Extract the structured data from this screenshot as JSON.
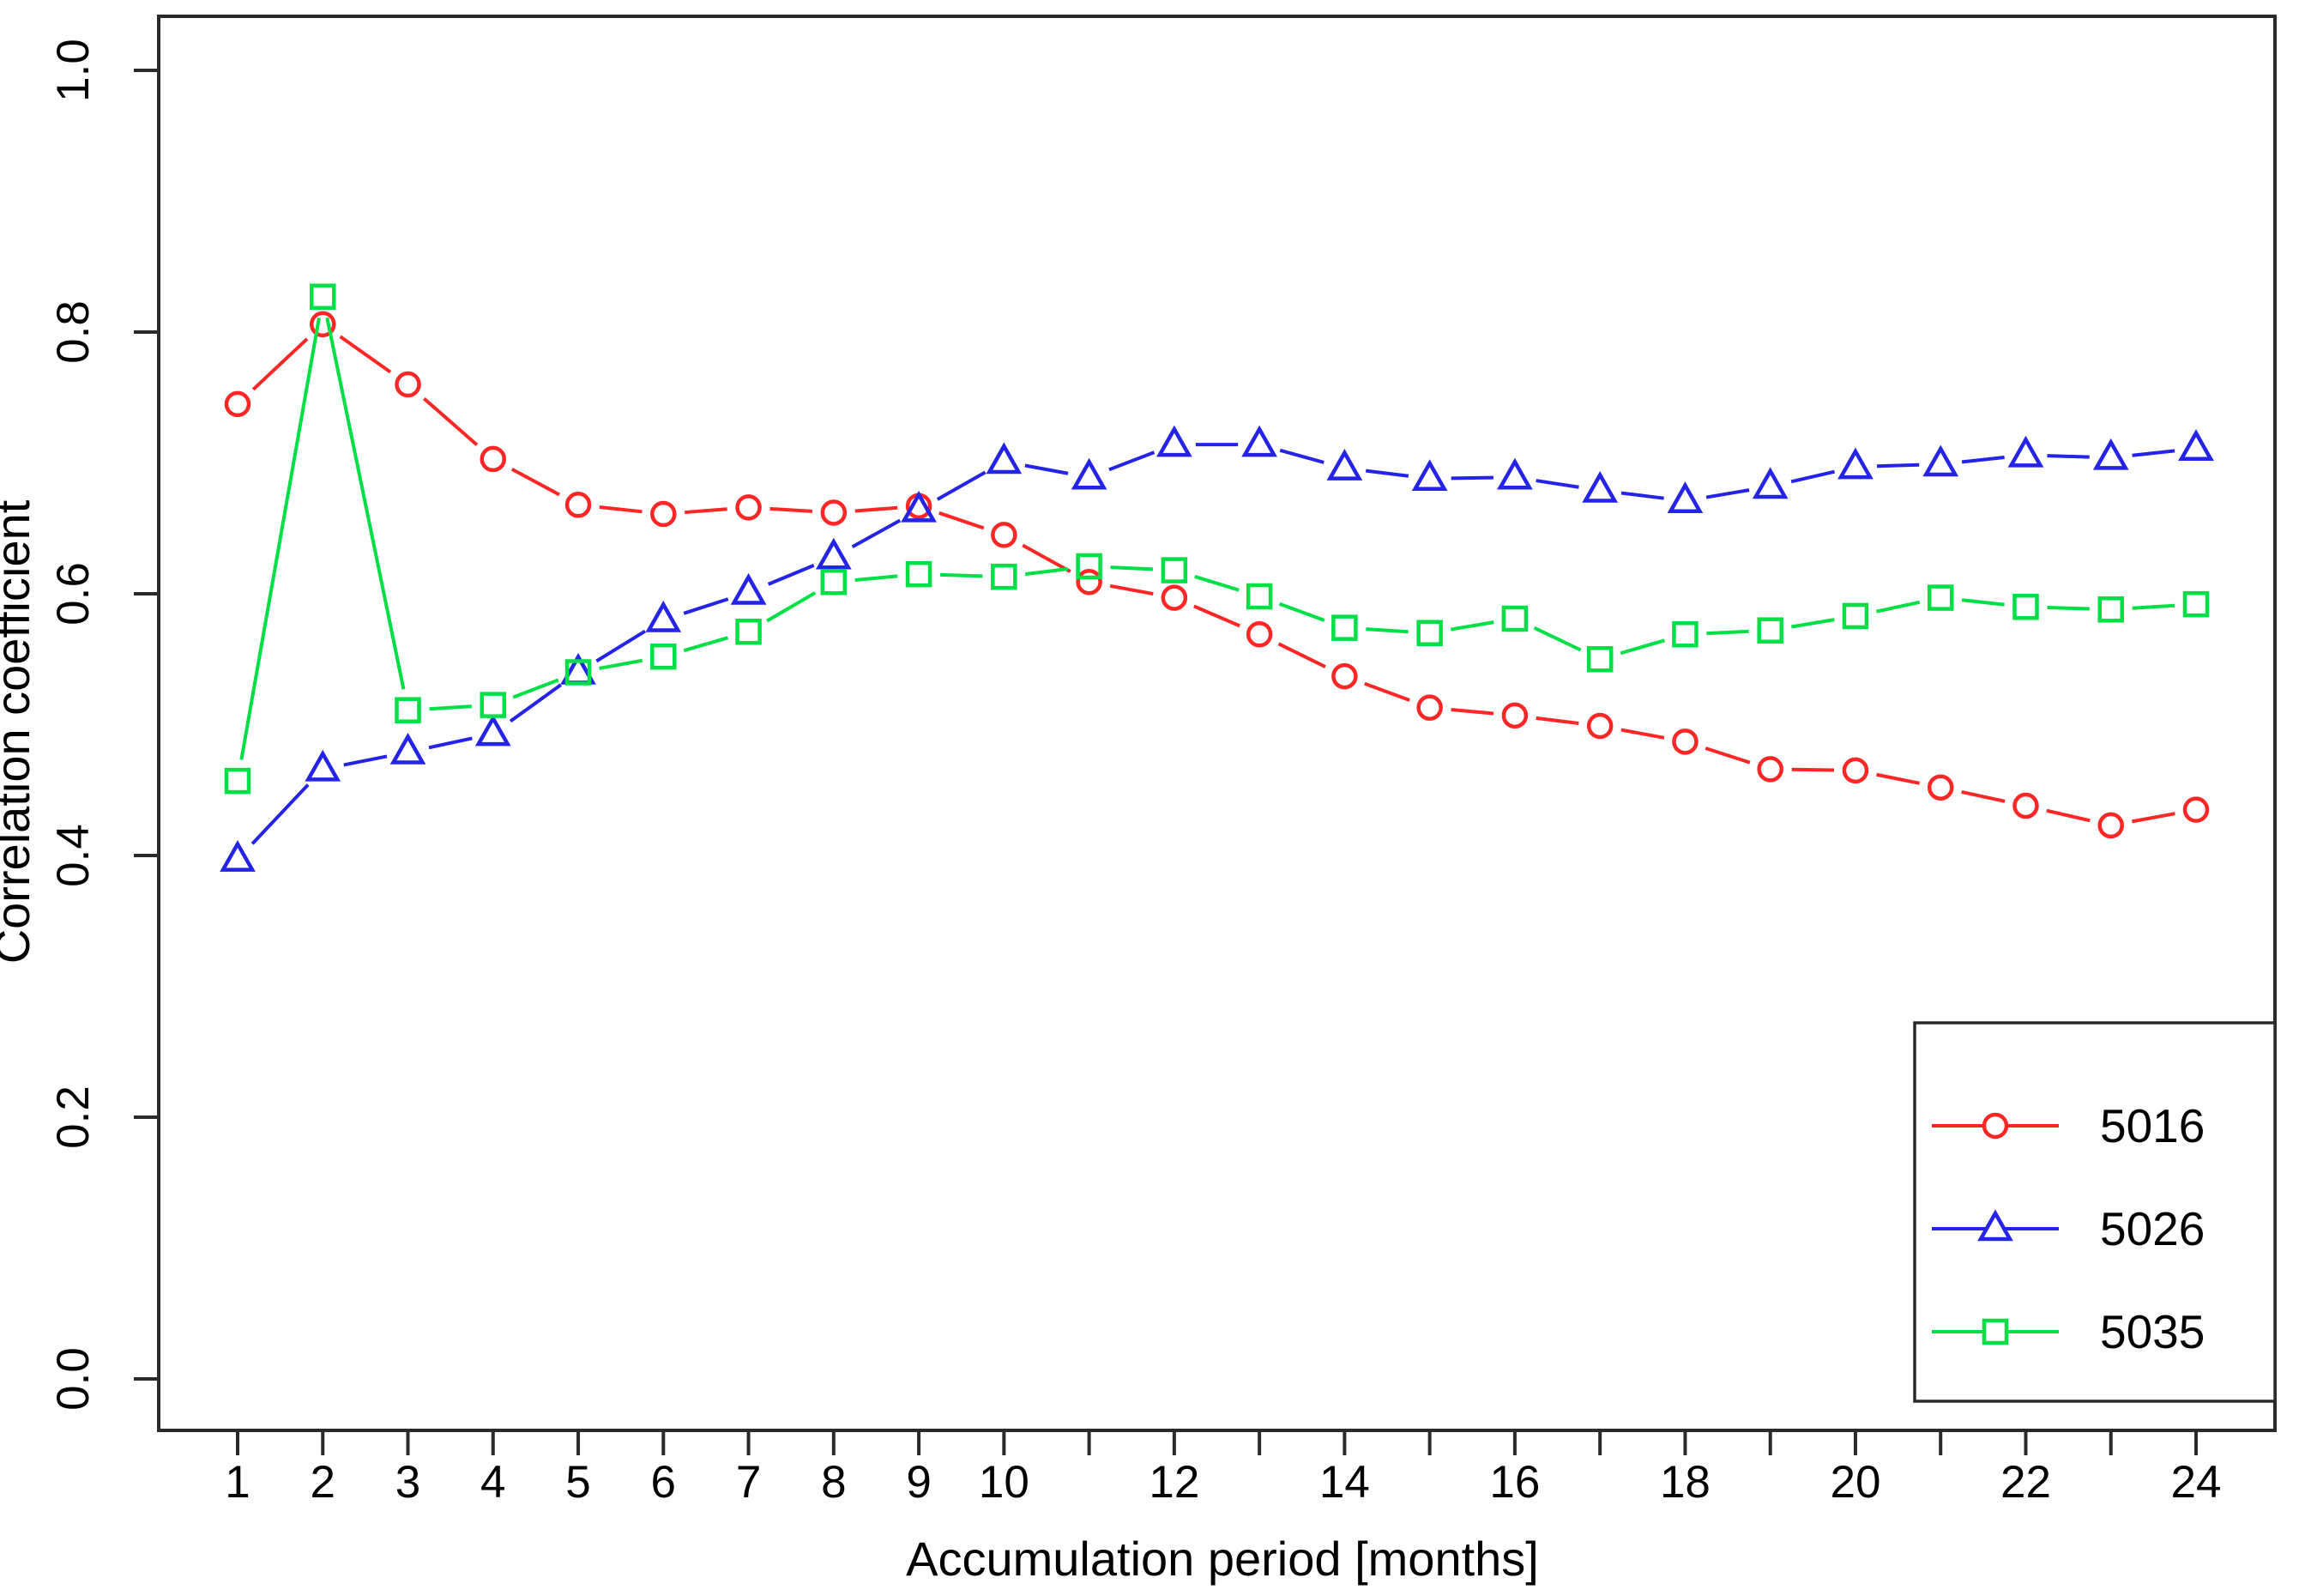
{
  "page": {
    "background": "#ffffff"
  },
  "colors": {
    "frame": "#2a2a2a",
    "text": "#000000",
    "series_red": "#ff2626",
    "series_blue": "#2424e8",
    "series_green": "#00e046"
  },
  "axes": {
    "x": {
      "label": "Accumulation period [months]",
      "tick_positions": [
        1,
        2,
        3,
        4,
        5,
        6,
        7,
        8,
        9,
        10,
        11,
        12,
        13,
        14,
        15,
        16,
        17,
        18,
        19,
        20,
        21,
        22,
        23,
        24
      ],
      "labeled_ticks": [
        1,
        2,
        3,
        4,
        5,
        6,
        7,
        8,
        9,
        10,
        12,
        14,
        16,
        18,
        20,
        22,
        24
      ]
    },
    "y": {
      "label": "Correlation coefficient",
      "tick_values": [
        0.0,
        0.2,
        0.4,
        0.6,
        0.8,
        1.0
      ],
      "tick_labels": [
        "0.0",
        "0.2",
        "0.4",
        "0.6",
        "0.8",
        "1.0"
      ]
    }
  },
  "legend": {
    "position": "bottom-right",
    "labels": [
      "5016",
      "5026",
      "5035"
    ]
  },
  "chart_data": {
    "type": "line",
    "title": "",
    "xlabel": "Accumulation period [months]",
    "ylabel": "Correlation coefficient",
    "xlim": [
      1,
      24
    ],
    "ylim": [
      0.0,
      1.0
    ],
    "grid": false,
    "legend_position": "bottom-right",
    "x": [
      1,
      2,
      3,
      4,
      5,
      6,
      7,
      8,
      9,
      10,
      11,
      12,
      13,
      14,
      15,
      16,
      17,
      18,
      19,
      20,
      21,
      22,
      23,
      24
    ],
    "series": [
      {
        "name": "5016",
        "color": "#ff2626",
        "marker": "circle",
        "values": [
          0.745,
          0.806,
          0.76,
          0.703,
          0.668,
          0.661,
          0.666,
          0.662,
          0.667,
          0.645,
          0.609,
          0.597,
          0.569,
          0.537,
          0.513,
          0.507,
          0.499,
          0.487,
          0.466,
          0.465,
          0.452,
          0.438,
          0.423,
          0.435
        ]
      },
      {
        "name": "5026",
        "color": "#2424e8",
        "marker": "triangle",
        "values": [
          0.397,
          0.466,
          0.479,
          0.493,
          0.54,
          0.58,
          0.601,
          0.628,
          0.664,
          0.701,
          0.689,
          0.714,
          0.714,
          0.696,
          0.688,
          0.689,
          0.679,
          0.671,
          0.682,
          0.697,
          0.699,
          0.706,
          0.704,
          0.711
        ]
      },
      {
        "name": "5035",
        "color": "#00e046",
        "marker": "square",
        "values": [
          0.457,
          0.827,
          0.511,
          0.515,
          0.54,
          0.552,
          0.571,
          0.609,
          0.615,
          0.613,
          0.621,
          0.618,
          0.598,
          0.574,
          0.57,
          0.581,
          0.55,
          0.569,
          0.572,
          0.583,
          0.597,
          0.59,
          0.588,
          0.592
        ]
      }
    ]
  }
}
